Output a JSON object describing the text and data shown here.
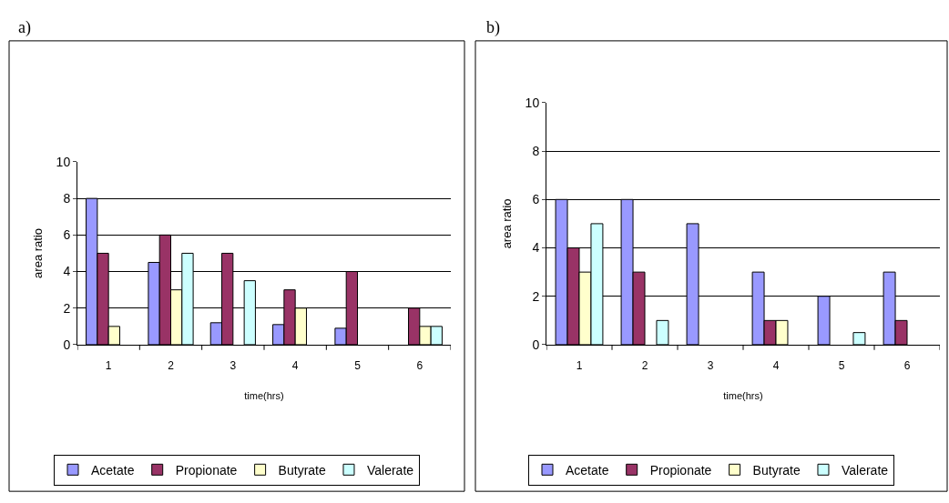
{
  "chart_data": [
    {
      "type": "bar",
      "title": "a)",
      "xlabel": "time(hrs)",
      "ylabel": "area ratio",
      "categories": [
        "1",
        "2",
        "3",
        "4",
        "5",
        "6"
      ],
      "ylim": [
        0,
        10
      ],
      "yticks": [
        0,
        2,
        4,
        6,
        8,
        10
      ],
      "grid": "y",
      "legend": "bottom",
      "series": [
        {
          "name": "Acetate",
          "color": "#9999ff",
          "values": [
            8,
            4.5,
            1.2,
            1.1,
            0.9,
            null
          ]
        },
        {
          "name": "Propionate",
          "color": "#993366",
          "values": [
            5,
            6,
            5,
            3,
            4,
            2
          ]
        },
        {
          "name": "Butyrate",
          "color": "#ffffcc",
          "values": [
            1,
            3,
            null,
            2,
            null,
            1
          ]
        },
        {
          "name": "Valerate",
          "color": "#ccffff",
          "values": [
            null,
            5,
            3.5,
            null,
            null,
            1
          ]
        }
      ]
    },
    {
      "type": "bar",
      "title": "b)",
      "xlabel": "time(hrs)",
      "ylabel": "area ratio",
      "categories": [
        "1",
        "2",
        "3",
        "4",
        "5",
        "6"
      ],
      "ylim": [
        0,
        10
      ],
      "yticks": [
        0,
        2,
        4,
        6,
        8,
        10
      ],
      "grid": "y",
      "legend": "bottom",
      "series": [
        {
          "name": "Acetate",
          "color": "#9999ff",
          "values": [
            6,
            6,
            5,
            3,
            2,
            3
          ]
        },
        {
          "name": "Propionate",
          "color": "#993366",
          "values": [
            4,
            3,
            null,
            1,
            null,
            1
          ]
        },
        {
          "name": "Butyrate",
          "color": "#ffffcc",
          "values": [
            3,
            null,
            null,
            1,
            null,
            null
          ]
        },
        {
          "name": "Valerate",
          "color": "#ccffff",
          "values": [
            5,
            1,
            null,
            null,
            0.5,
            null
          ]
        }
      ]
    }
  ]
}
